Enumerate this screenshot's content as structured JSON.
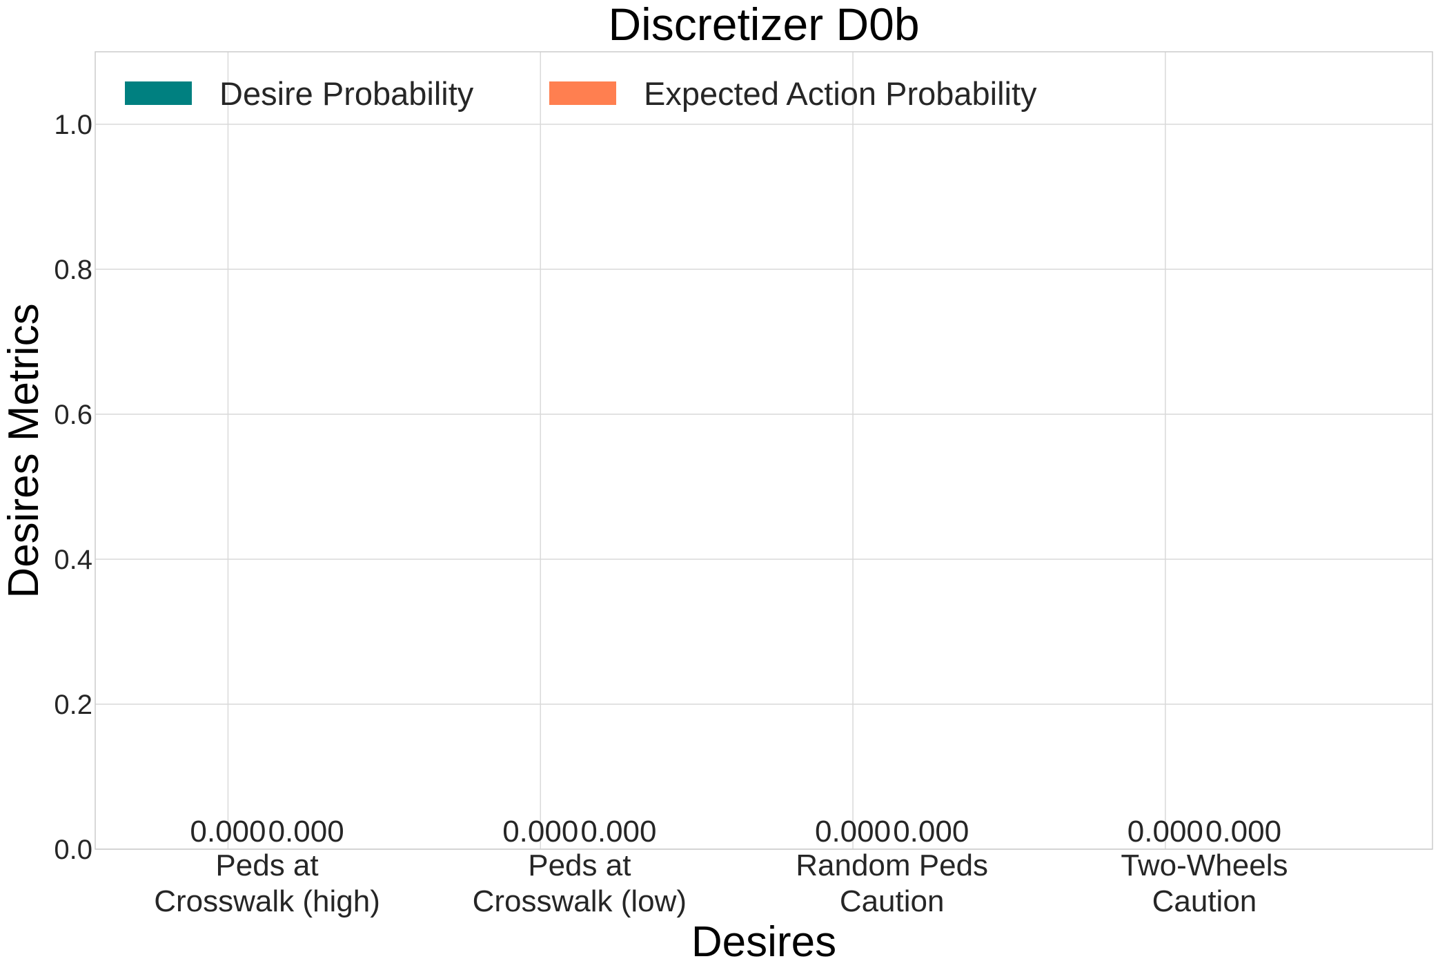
{
  "chart_data": {
    "type": "bar",
    "title": "Discretizer D0b",
    "xlabel": "Desires",
    "ylabel": "Desires Metrics",
    "categories": [
      [
        "Peds at",
        "Crosswalk (high)"
      ],
      [
        "Peds at",
        "Crosswalk (low)"
      ],
      [
        "Random Peds",
        "Caution"
      ],
      [
        "Two-Wheels",
        "Caution"
      ]
    ],
    "series": [
      {
        "name": "Desire Probability",
        "color": "#008080",
        "values": [
          0.0,
          0.0,
          0.0,
          0.0
        ],
        "labels": [
          "0.000",
          "0.000",
          "0.000",
          "0.000"
        ]
      },
      {
        "name": "Expected Action Probability",
        "color": "#ff7f50",
        "values": [
          0.0,
          0.0,
          0.0,
          0.0
        ],
        "labels": [
          "0.000",
          "0.000",
          "0.000",
          "0.000"
        ]
      }
    ],
    "ylim": [
      0,
      1.1
    ],
    "yticks": [
      "0.0",
      "0.2",
      "0.4",
      "0.6",
      "0.8",
      "1.0"
    ],
    "ytick_values": [
      0,
      0.2,
      0.4,
      0.6,
      0.8,
      1.0
    ],
    "grid": true,
    "legend_position": "top-left"
  }
}
